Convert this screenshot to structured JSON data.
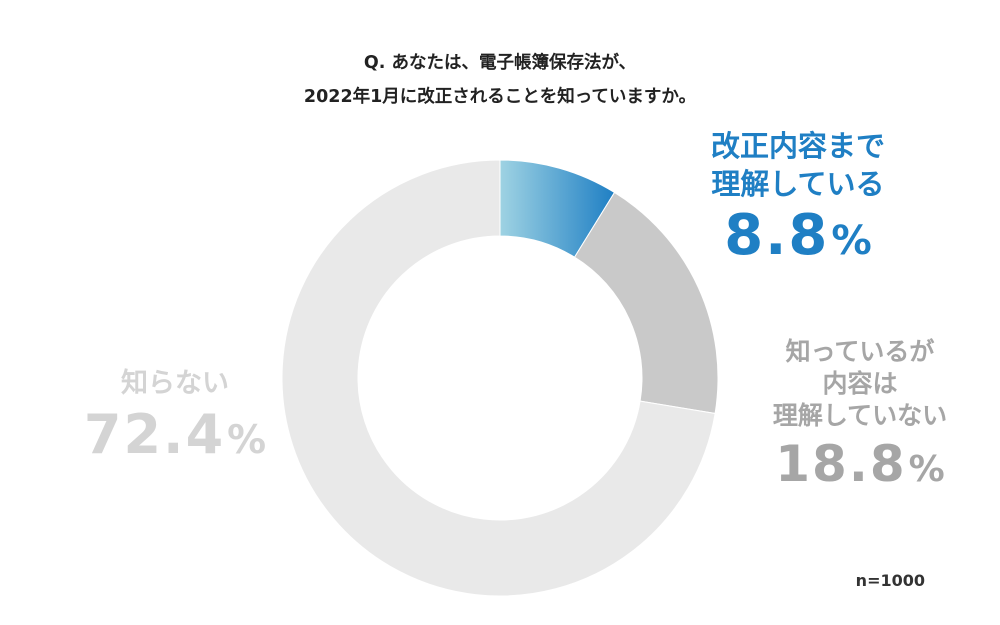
{
  "question": {
    "line1": "Q. あなたは、電子帳簿保存法が、",
    "line2": "2022年1月に改正されることを知っていますか。"
  },
  "chart_data": {
    "type": "pie",
    "categories": [
      "改正内容まで理解している",
      "知っているが内容は理解していない",
      "知らない"
    ],
    "values": [
      8.8,
      18.8,
      72.4
    ],
    "unit": "%",
    "colors": [
      "#1f7fc4",
      "#c9c9c9",
      "#e9e9e9"
    ],
    "gradient_light": "#9fd3e3",
    "legend_position": "labels placed beside slices"
  },
  "labels": {
    "aware": {
      "line1": "改正内容まで",
      "line2": "理解している",
      "value": "8.8",
      "unit": "%"
    },
    "partial": {
      "line1": "知っているが",
      "line2": "内容は",
      "line3": "理解していない",
      "value": "18.8",
      "unit": "%"
    },
    "unaware": {
      "line1": "知らない",
      "value": "72.4",
      "unit": "%"
    }
  },
  "sample": "n=1000"
}
